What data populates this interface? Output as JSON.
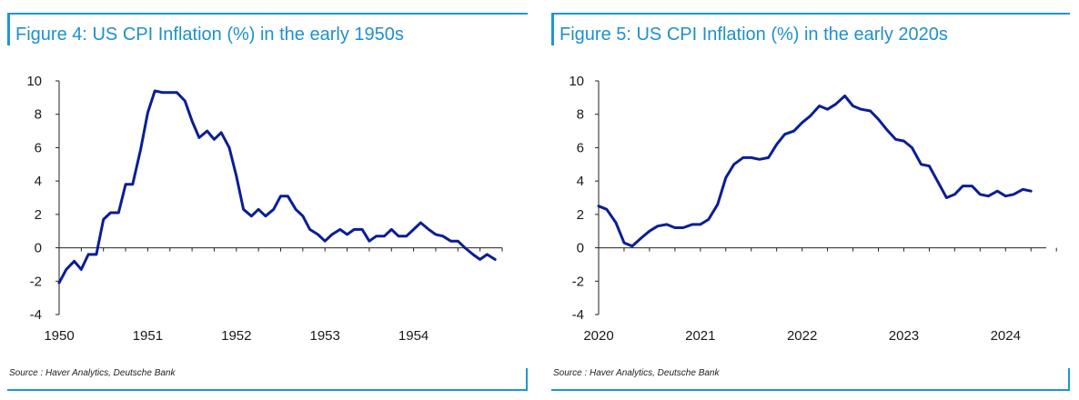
{
  "figures": [
    {
      "title": "Figure 4: US CPI Inflation (%) in the early 1950s",
      "source": "Source : Haver Analytics, Deutsche Bank"
    },
    {
      "title": "Figure 5: US CPI Inflation (%) in the early 2020s",
      "source": "Source : Haver Analytics, Deutsche Bank"
    }
  ],
  "colors": {
    "accent": "#1e96d2",
    "line": "#0a1e96",
    "axis": "#222222"
  },
  "chart_data": [
    {
      "type": "line",
      "title": "",
      "xlabel": "",
      "ylabel": "",
      "ylim": [
        -4,
        10
      ],
      "xlim": [
        1950.0,
        1955.0
      ],
      "yticks": [
        "10",
        "8",
        "6",
        "4",
        "2",
        "0",
        "-2",
        "-4"
      ],
      "xticks": [
        "1950",
        "1951",
        "1952",
        "1953",
        "1954"
      ],
      "grid": false,
      "series": [
        {
          "x": [
            1950.0,
            1950.08,
            1950.17,
            1950.25,
            1950.33,
            1950.42,
            1950.5,
            1950.58,
            1950.67,
            1950.75,
            1950.83,
            1950.92,
            1951.0,
            1951.08,
            1951.17,
            1951.25,
            1951.33,
            1951.42,
            1951.5,
            1951.58,
            1951.67,
            1951.75,
            1951.83,
            1951.92,
            1952.0,
            1952.08,
            1952.17,
            1952.25,
            1952.33,
            1952.42,
            1952.5,
            1952.58,
            1952.67,
            1952.75,
            1952.83,
            1952.92,
            1953.0,
            1953.08,
            1953.17,
            1953.25,
            1953.33,
            1953.42,
            1953.5,
            1953.58,
            1953.67,
            1953.75,
            1953.83,
            1953.92,
            1954.0,
            1954.08,
            1954.17,
            1954.25,
            1954.33,
            1954.42,
            1954.5,
            1954.58,
            1954.67,
            1954.75,
            1954.83,
            1954.92
          ],
          "y": [
            -2.1,
            -1.3,
            -0.8,
            -1.3,
            -0.4,
            -0.4,
            1.7,
            2.1,
            2.1,
            3.8,
            3.8,
            5.9,
            8.1,
            9.4,
            9.3,
            9.3,
            9.3,
            8.8,
            7.6,
            6.6,
            7.0,
            6.5,
            6.9,
            6.0,
            4.3,
            2.3,
            1.9,
            2.3,
            1.9,
            2.3,
            3.1,
            3.1,
            2.3,
            1.9,
            1.1,
            0.8,
            0.4,
            0.8,
            1.1,
            0.8,
            1.1,
            1.1,
            0.4,
            0.7,
            0.7,
            1.1,
            0.7,
            0.7,
            1.1,
            1.5,
            1.1,
            0.8,
            0.7,
            0.4,
            0.4,
            0.0,
            -0.4,
            -0.7,
            -0.4,
            -0.7
          ]
        }
      ]
    },
    {
      "type": "line",
      "title": "",
      "xlabel": "",
      "ylabel": "",
      "ylim": [
        -4,
        10
      ],
      "xlim": [
        2020.0,
        2024.4
      ],
      "yticks": [
        "10",
        "8",
        "6",
        "4",
        "2",
        "0",
        "-2",
        "-4"
      ],
      "xticks": [
        "2020",
        "2021",
        "2022",
        "2023",
        "2024"
      ],
      "grid": false,
      "series": [
        {
          "x": [
            2020.0,
            2020.08,
            2020.17,
            2020.25,
            2020.33,
            2020.42,
            2020.5,
            2020.58,
            2020.67,
            2020.75,
            2020.83,
            2020.92,
            2021.0,
            2021.08,
            2021.17,
            2021.25,
            2021.33,
            2021.42,
            2021.5,
            2021.58,
            2021.67,
            2021.75,
            2021.83,
            2021.92,
            2022.0,
            2022.08,
            2022.17,
            2022.25,
            2022.33,
            2022.42,
            2022.5,
            2022.58,
            2022.67,
            2022.75,
            2022.83,
            2022.92,
            2023.0,
            2023.08,
            2023.17,
            2023.25,
            2023.33,
            2023.42,
            2023.5,
            2023.58,
            2023.67,
            2023.75,
            2023.83,
            2023.92,
            2024.0,
            2024.08,
            2024.17,
            2024.25
          ],
          "y": [
            2.5,
            2.3,
            1.5,
            0.3,
            0.1,
            0.6,
            1.0,
            1.3,
            1.4,
            1.2,
            1.2,
            1.4,
            1.4,
            1.7,
            2.6,
            4.2,
            5.0,
            5.4,
            5.4,
            5.3,
            5.4,
            6.2,
            6.8,
            7.0,
            7.5,
            7.9,
            8.5,
            8.3,
            8.6,
            9.1,
            8.5,
            8.3,
            8.2,
            7.7,
            7.1,
            6.5,
            6.4,
            6.0,
            5.0,
            4.9,
            4.0,
            3.0,
            3.2,
            3.7,
            3.7,
            3.2,
            3.1,
            3.4,
            3.1,
            3.2,
            3.5,
            3.4
          ]
        }
      ]
    }
  ]
}
